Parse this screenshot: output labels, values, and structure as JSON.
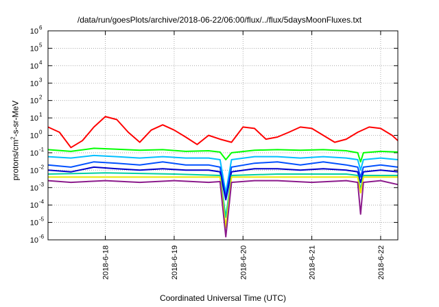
{
  "chart_data": {
    "type": "line",
    "title": "/data/run/goesPlots/archive/2018-06-22/06:00/flux/../flux/5daysMoonFluxes.txt",
    "xlabel": "Coordinated Universal Time (UTC)",
    "ylabel": "protons/cm2-s-sr-MeV",
    "y_scale": "log",
    "ylim": [
      1e-06,
      1000000.0
    ],
    "xlim": [
      "2018-06-17 04:00",
      "2018-06-22 06:00"
    ],
    "grid": true,
    "x_tick_labels": [
      "2018-6-18",
      "2018-6-19",
      "2018-6-20",
      "2018-6-21",
      "2018-6-22"
    ],
    "y_tick_labels": [
      {
        "base": "10",
        "exp": "-6"
      },
      {
        "base": "10",
        "exp": "-5"
      },
      {
        "base": "10",
        "exp": "-4"
      },
      {
        "base": "10",
        "exp": "-3"
      },
      {
        "base": "10",
        "exp": "-2"
      },
      {
        "base": "10",
        "exp": "-1"
      },
      {
        "base": "10",
        "exp": "0"
      },
      {
        "base": "10",
        "exp": "1"
      },
      {
        "base": "10",
        "exp": "2"
      },
      {
        "base": "10",
        "exp": "3"
      },
      {
        "base": "10",
        "exp": "4"
      },
      {
        "base": "10",
        "exp": "5"
      },
      {
        "base": "10",
        "exp": "6"
      }
    ],
    "series": [
      {
        "color": "#ff0000",
        "x": [
          "2018-06-17 04:00",
          "2018-06-17 08:00",
          "2018-06-17 12:00",
          "2018-06-17 16:00",
          "2018-06-17 20:00",
          "2018-06-18 00:00",
          "2018-06-18 04:00",
          "2018-06-18 08:00",
          "2018-06-18 12:00",
          "2018-06-18 16:00",
          "2018-06-18 20:00",
          "2018-06-19 00:00",
          "2018-06-19 04:00",
          "2018-06-19 08:00",
          "2018-06-19 12:00",
          "2018-06-19 16:00",
          "2018-06-19 20:00",
          "2018-06-20 00:00",
          "2018-06-20 04:00",
          "2018-06-20 08:00",
          "2018-06-20 12:00",
          "2018-06-20 16:00",
          "2018-06-20 20:00",
          "2018-06-21 00:00",
          "2018-06-21 04:00",
          "2018-06-21 08:00",
          "2018-06-21 12:00",
          "2018-06-21 16:00",
          "2018-06-21 20:00",
          "2018-06-22 00:00",
          "2018-06-22 04:00",
          "2018-06-22 06:00"
        ],
        "y": [
          3,
          1.5,
          0.2,
          0.5,
          3,
          12,
          8,
          1.5,
          0.4,
          2,
          4,
          2,
          0.8,
          0.3,
          1,
          0.6,
          0.4,
          3,
          2.5,
          0.6,
          0.8,
          1.5,
          3,
          2.5,
          1,
          0.4,
          0.6,
          1.5,
          3,
          2.5,
          1,
          0.5
        ]
      },
      {
        "color": "#00ff00",
        "x": [
          "2018-06-17 04:00",
          "2018-06-17 12:00",
          "2018-06-17 20:00",
          "2018-06-18 04:00",
          "2018-06-18 12:00",
          "2018-06-18 20:00",
          "2018-06-19 04:00",
          "2018-06-19 12:00",
          "2018-06-19 16:00",
          "2018-06-19 18:00",
          "2018-06-19 20:00",
          "2018-06-20 04:00",
          "2018-06-20 12:00",
          "2018-06-20 20:00",
          "2018-06-21 04:00",
          "2018-06-21 12:00",
          "2018-06-21 16:00",
          "2018-06-21 17:00",
          "2018-06-21 18:00",
          "2018-06-22 00:00",
          "2018-06-22 06:00"
        ],
        "y": [
          0.15,
          0.12,
          0.18,
          0.16,
          0.14,
          0.15,
          0.12,
          0.13,
          0.11,
          0.04,
          0.1,
          0.14,
          0.15,
          0.14,
          0.15,
          0.13,
          0.1,
          0.03,
          0.1,
          0.12,
          0.11
        ]
      },
      {
        "color": "#00bfff",
        "x": [
          "2018-06-17 04:00",
          "2018-06-17 12:00",
          "2018-06-17 20:00",
          "2018-06-18 04:00",
          "2018-06-18 12:00",
          "2018-06-18 20:00",
          "2018-06-19 04:00",
          "2018-06-19 12:00",
          "2018-06-19 16:00",
          "2018-06-19 18:00",
          "2018-06-19 20:00",
          "2018-06-20 04:00",
          "2018-06-20 12:00",
          "2018-06-20 20:00",
          "2018-06-21 04:00",
          "2018-06-21 12:00",
          "2018-06-21 16:00",
          "2018-06-21 17:00",
          "2018-06-21 18:00",
          "2018-06-22 00:00",
          "2018-06-22 06:00"
        ],
        "y": [
          0.06,
          0.05,
          0.07,
          0.06,
          0.05,
          0.06,
          0.05,
          0.05,
          0.04,
          0.0005,
          0.04,
          0.06,
          0.06,
          0.05,
          0.06,
          0.05,
          0.04,
          0.01,
          0.04,
          0.05,
          0.04
        ]
      },
      {
        "color": "#0050ff",
        "x": [
          "2018-06-17 04:00",
          "2018-06-17 12:00",
          "2018-06-17 20:00",
          "2018-06-18 04:00",
          "2018-06-18 12:00",
          "2018-06-18 20:00",
          "2018-06-19 04:00",
          "2018-06-19 12:00",
          "2018-06-19 16:00",
          "2018-06-19 18:00",
          "2018-06-19 20:00",
          "2018-06-20 04:00",
          "2018-06-20 12:00",
          "2018-06-20 20:00",
          "2018-06-21 04:00",
          "2018-06-21 12:00",
          "2018-06-21 16:00",
          "2018-06-21 17:00",
          "2018-06-21 18:00",
          "2018-06-22 00:00",
          "2018-06-22 06:00"
        ],
        "y": [
          0.02,
          0.015,
          0.03,
          0.025,
          0.02,
          0.03,
          0.02,
          0.02,
          0.015,
          0.0003,
          0.015,
          0.025,
          0.03,
          0.02,
          0.03,
          0.02,
          0.015,
          0.004,
          0.015,
          0.02,
          0.015
        ]
      },
      {
        "color": "#0000cc",
        "x": [
          "2018-06-17 04:00",
          "2018-06-17 12:00",
          "2018-06-17 20:00",
          "2018-06-18 04:00",
          "2018-06-18 12:00",
          "2018-06-18 20:00",
          "2018-06-19 04:00",
          "2018-06-19 12:00",
          "2018-06-19 16:00",
          "2018-06-19 18:00",
          "2018-06-19 20:00",
          "2018-06-20 04:00",
          "2018-06-20 12:00",
          "2018-06-20 20:00",
          "2018-06-21 04:00",
          "2018-06-21 12:00",
          "2018-06-21 16:00",
          "2018-06-21 17:00",
          "2018-06-21 18:00",
          "2018-06-22 00:00",
          "2018-06-22 06:00"
        ],
        "y": [
          0.01,
          0.008,
          0.015,
          0.012,
          0.01,
          0.012,
          0.01,
          0.01,
          0.008,
          0.0002,
          0.008,
          0.012,
          0.012,
          0.01,
          0.012,
          0.01,
          0.008,
          0.002,
          0.008,
          0.01,
          0.008
        ]
      },
      {
        "color": "#00d0a0",
        "x": [
          "2018-06-17 04:00",
          "2018-06-18 00:00",
          "2018-06-19 00:00",
          "2018-06-19 16:00",
          "2018-06-19 18:00",
          "2018-06-19 20:00",
          "2018-06-20 12:00",
          "2018-06-21 12:00",
          "2018-06-21 16:00",
          "2018-06-21 17:00",
          "2018-06-21 18:00",
          "2018-06-22 06:00"
        ],
        "y": [
          0.006,
          0.007,
          0.006,
          0.005,
          2e-05,
          0.005,
          0.006,
          0.006,
          0.005,
          0.0008,
          0.005,
          0.005
        ]
      },
      {
        "color": "#e8e800",
        "x": [
          "2018-06-17 04:00",
          "2018-06-18 00:00",
          "2018-06-19 00:00",
          "2018-06-19 16:00",
          "2018-06-19 18:00",
          "2018-06-19 20:00",
          "2018-06-20 12:00",
          "2018-06-21 12:00",
          "2018-06-21 16:00",
          "2018-06-21 17:00",
          "2018-06-21 18:00",
          "2018-06-22 06:00"
        ],
        "y": [
          0.004,
          0.004,
          0.004,
          0.004,
          5e-06,
          0.004,
          0.004,
          0.004,
          0.004,
          0.0005,
          0.004,
          0.004
        ]
      },
      {
        "color": "#8b1a8b",
        "x": [
          "2018-06-17 04:00",
          "2018-06-17 12:00",
          "2018-06-18 00:00",
          "2018-06-18 12:00",
          "2018-06-19 00:00",
          "2018-06-19 12:00",
          "2018-06-19 16:00",
          "2018-06-19 18:00",
          "2018-06-19 20:00",
          "2018-06-20 04:00",
          "2018-06-20 12:00",
          "2018-06-21 00:00",
          "2018-06-21 12:00",
          "2018-06-21 16:00",
          "2018-06-21 17:00",
          "2018-06-21 18:00",
          "2018-06-22 00:00",
          "2018-06-22 06:00"
        ],
        "y": [
          0.0025,
          0.002,
          0.0025,
          0.002,
          0.0025,
          0.002,
          0.0022,
          1.5e-06,
          0.002,
          0.0025,
          0.0025,
          0.002,
          0.0025,
          0.002,
          3e-05,
          0.002,
          0.0025,
          0.0015
        ]
      }
    ]
  }
}
